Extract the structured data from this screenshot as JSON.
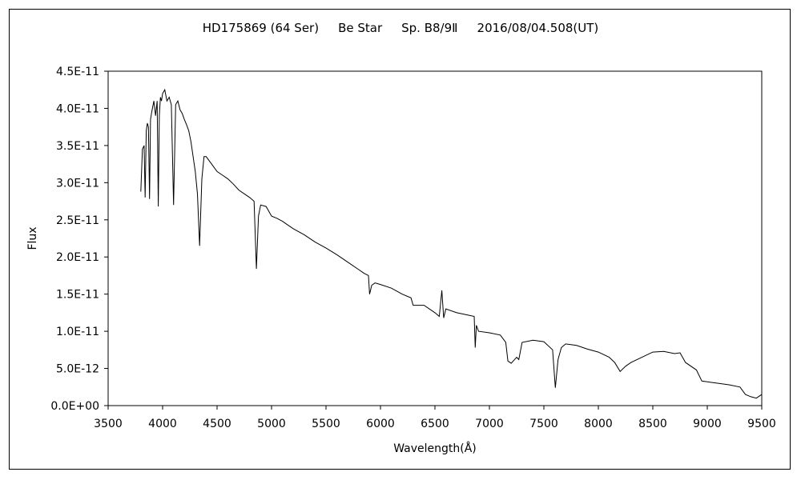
{
  "chart_data": {
    "type": "line",
    "title_parts": [
      "HD175869 (64 Ser)",
      "Be Star",
      "Sp. B8/9Ⅱ",
      "2016/08/04.508(UT)"
    ],
    "xlabel": "Wavelength(Å)",
    "ylabel": "Flux",
    "xlim": [
      3500,
      9500
    ],
    "ylim": [
      0,
      4.5e-11
    ],
    "x_ticks": [
      3500,
      4000,
      4500,
      5000,
      5500,
      6000,
      6500,
      7000,
      7500,
      8000,
      8500,
      9000,
      9500
    ],
    "x_tick_labels": [
      "3500",
      "4000",
      "4500",
      "5000",
      "5500",
      "6000",
      "6500",
      "7000",
      "7500",
      "8000",
      "8500",
      "9000",
      "9500"
    ],
    "y_ticks": [
      0,
      5e-12,
      1e-11,
      1.5e-11,
      2e-11,
      2.5e-11,
      3e-11,
      3.5e-11,
      4e-11,
      4.5e-11
    ],
    "y_tick_labels": [
      "0.0E+00",
      "5.0E-12",
      "1.0E-11",
      "1.5E-11",
      "2.0E-11",
      "2.5E-11",
      "3.0E-11",
      "3.5E-11",
      "4.0E-11",
      "4.5E-11"
    ],
    "grid": false,
    "legend": "none",
    "line_color": "#000000",
    "x": [
      3800,
      3815,
      3830,
      3840,
      3850,
      3860,
      3870,
      3880,
      3889,
      3900,
      3920,
      3935,
      3950,
      3960,
      3970,
      3980,
      3990,
      4000,
      4020,
      4040,
      4060,
      4080,
      4101,
      4120,
      4140,
      4160,
      4180,
      4200,
      4220,
      4240,
      4260,
      4280,
      4300,
      4320,
      4340,
      4360,
      4380,
      4400,
      4450,
      4500,
      4550,
      4600,
      4650,
      4700,
      4750,
      4800,
      4840,
      4861,
      4880,
      4900,
      4950,
      5000,
      5050,
      5100,
      5150,
      5200,
      5300,
      5400,
      5500,
      5600,
      5700,
      5800,
      5850,
      5890,
      5900,
      5920,
      5950,
      6000,
      6100,
      6200,
      6280,
      6300,
      6400,
      6500,
      6540,
      6563,
      6580,
      6600,
      6700,
      6800,
      6860,
      6870,
      6880,
      6900,
      7000,
      7100,
      7150,
      7170,
      7200,
      7250,
      7270,
      7300,
      7400,
      7500,
      7580,
      7605,
      7630,
      7660,
      7700,
      7800,
      7900,
      8000,
      8100,
      8150,
      8200,
      8250,
      8300,
      8400,
      8500,
      8600,
      8700,
      8750,
      8800,
      8900,
      8950,
      9000,
      9100,
      9200,
      9300,
      9350,
      9400,
      9450,
      9500
    ],
    "y": [
      2.88e-11,
      3.45e-11,
      3.5e-11,
      2.8e-11,
      3.7e-11,
      3.8e-11,
      3.75e-11,
      2.78e-11,
      3.85e-11,
      3.95e-11,
      4.1e-11,
      3.9e-11,
      4.1e-11,
      2.68e-11,
      3.9e-11,
      4.15e-11,
      4.1e-11,
      4.2e-11,
      4.25e-11,
      4.1e-11,
      4.15e-11,
      4.05e-11,
      2.7e-11,
      4.05e-11,
      4.1e-11,
      3.98e-11,
      3.93e-11,
      3.85e-11,
      3.78e-11,
      3.7e-11,
      3.55e-11,
      3.35e-11,
      3.15e-11,
      2.85e-11,
      2.15e-11,
      3.05e-11,
      3.35e-11,
      3.35e-11,
      3.25e-11,
      3.15e-11,
      3.1e-11,
      3.05e-11,
      2.98e-11,
      2.9e-11,
      2.85e-11,
      2.8e-11,
      2.75e-11,
      1.84e-11,
      2.55e-11,
      2.7e-11,
      2.68e-11,
      2.55e-11,
      2.52e-11,
      2.48e-11,
      2.43e-11,
      2.38e-11,
      2.3e-11,
      2.2e-11,
      2.12e-11,
      2.03e-11,
      1.93e-11,
      1.83e-11,
      1.78e-11,
      1.75e-11,
      1.5e-11,
      1.62e-11,
      1.65e-11,
      1.63e-11,
      1.58e-11,
      1.5e-11,
      1.45e-11,
      1.35e-11,
      1.35e-11,
      1.25e-11,
      1.2e-11,
      1.55e-11,
      1.18e-11,
      1.3e-11,
      1.25e-11,
      1.22e-11,
      1.2e-11,
      7.8e-12,
      1.08e-11,
      1e-11,
      9.8e-12,
      9.5e-12,
      8.5e-12,
      6e-12,
      5.7e-12,
      6.5e-12,
      6.2e-12,
      8.5e-12,
      8.8e-12,
      8.6e-12,
      7.5e-12,
      2.4e-12,
      6.2e-12,
      7.8e-12,
      8.3e-12,
      8.1e-12,
      7.6e-12,
      7.2e-12,
      6.5e-12,
      5.8e-12,
      4.6e-12,
      5.3e-12,
      5.8e-12,
      6.5e-12,
      7.2e-12,
      7.3e-12,
      7e-12,
      7.1e-12,
      5.8e-12,
      4.8e-12,
      3.3e-12,
      3.2e-12,
      3e-12,
      2.8e-12,
      2.5e-12,
      1.5e-12,
      1.2e-12,
      1e-12,
      1.5e-12
    ]
  }
}
